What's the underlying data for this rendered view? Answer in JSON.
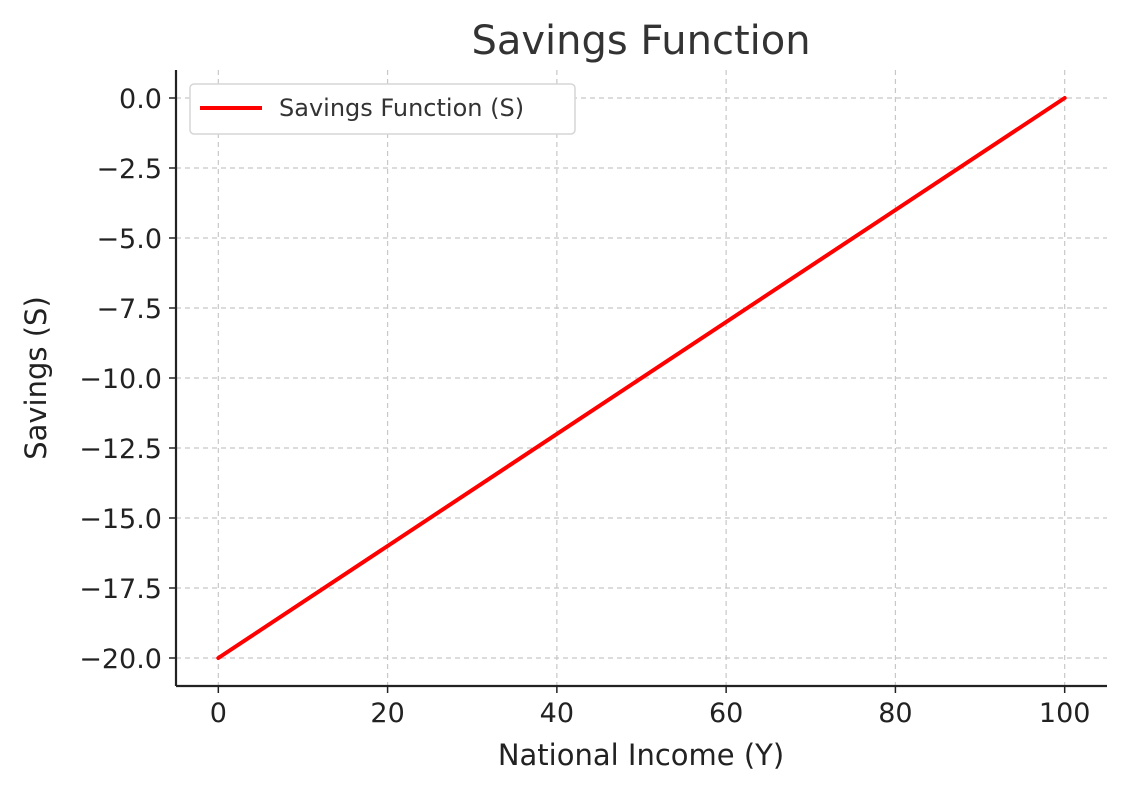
{
  "chart_data": {
    "type": "line",
    "title": "Savings Function",
    "xlabel": "National Income (Y)",
    "ylabel": "Savings (S)",
    "xlim": [
      -5,
      105
    ],
    "ylim": [
      -21,
      1
    ],
    "xticks": [
      0,
      20,
      40,
      60,
      80,
      100
    ],
    "xtick_labels": [
      "0",
      "20",
      "40",
      "60",
      "80",
      "100"
    ],
    "yticks": [
      0,
      -2.5,
      -5,
      -7.5,
      -10,
      -12.5,
      -15,
      -17.5,
      -20
    ],
    "ytick_labels": [
      "0.0",
      "−2.5",
      "−5.0",
      "−7.5",
      "−10.0",
      "−12.5",
      "−15.0",
      "−17.5",
      "−20.0"
    ],
    "grid": true,
    "legend_position": "top-left",
    "series": [
      {
        "name": "Savings Function (S)",
        "color": "#ff0000",
        "x": [
          0,
          100
        ],
        "y": [
          -20,
          0
        ]
      }
    ]
  }
}
